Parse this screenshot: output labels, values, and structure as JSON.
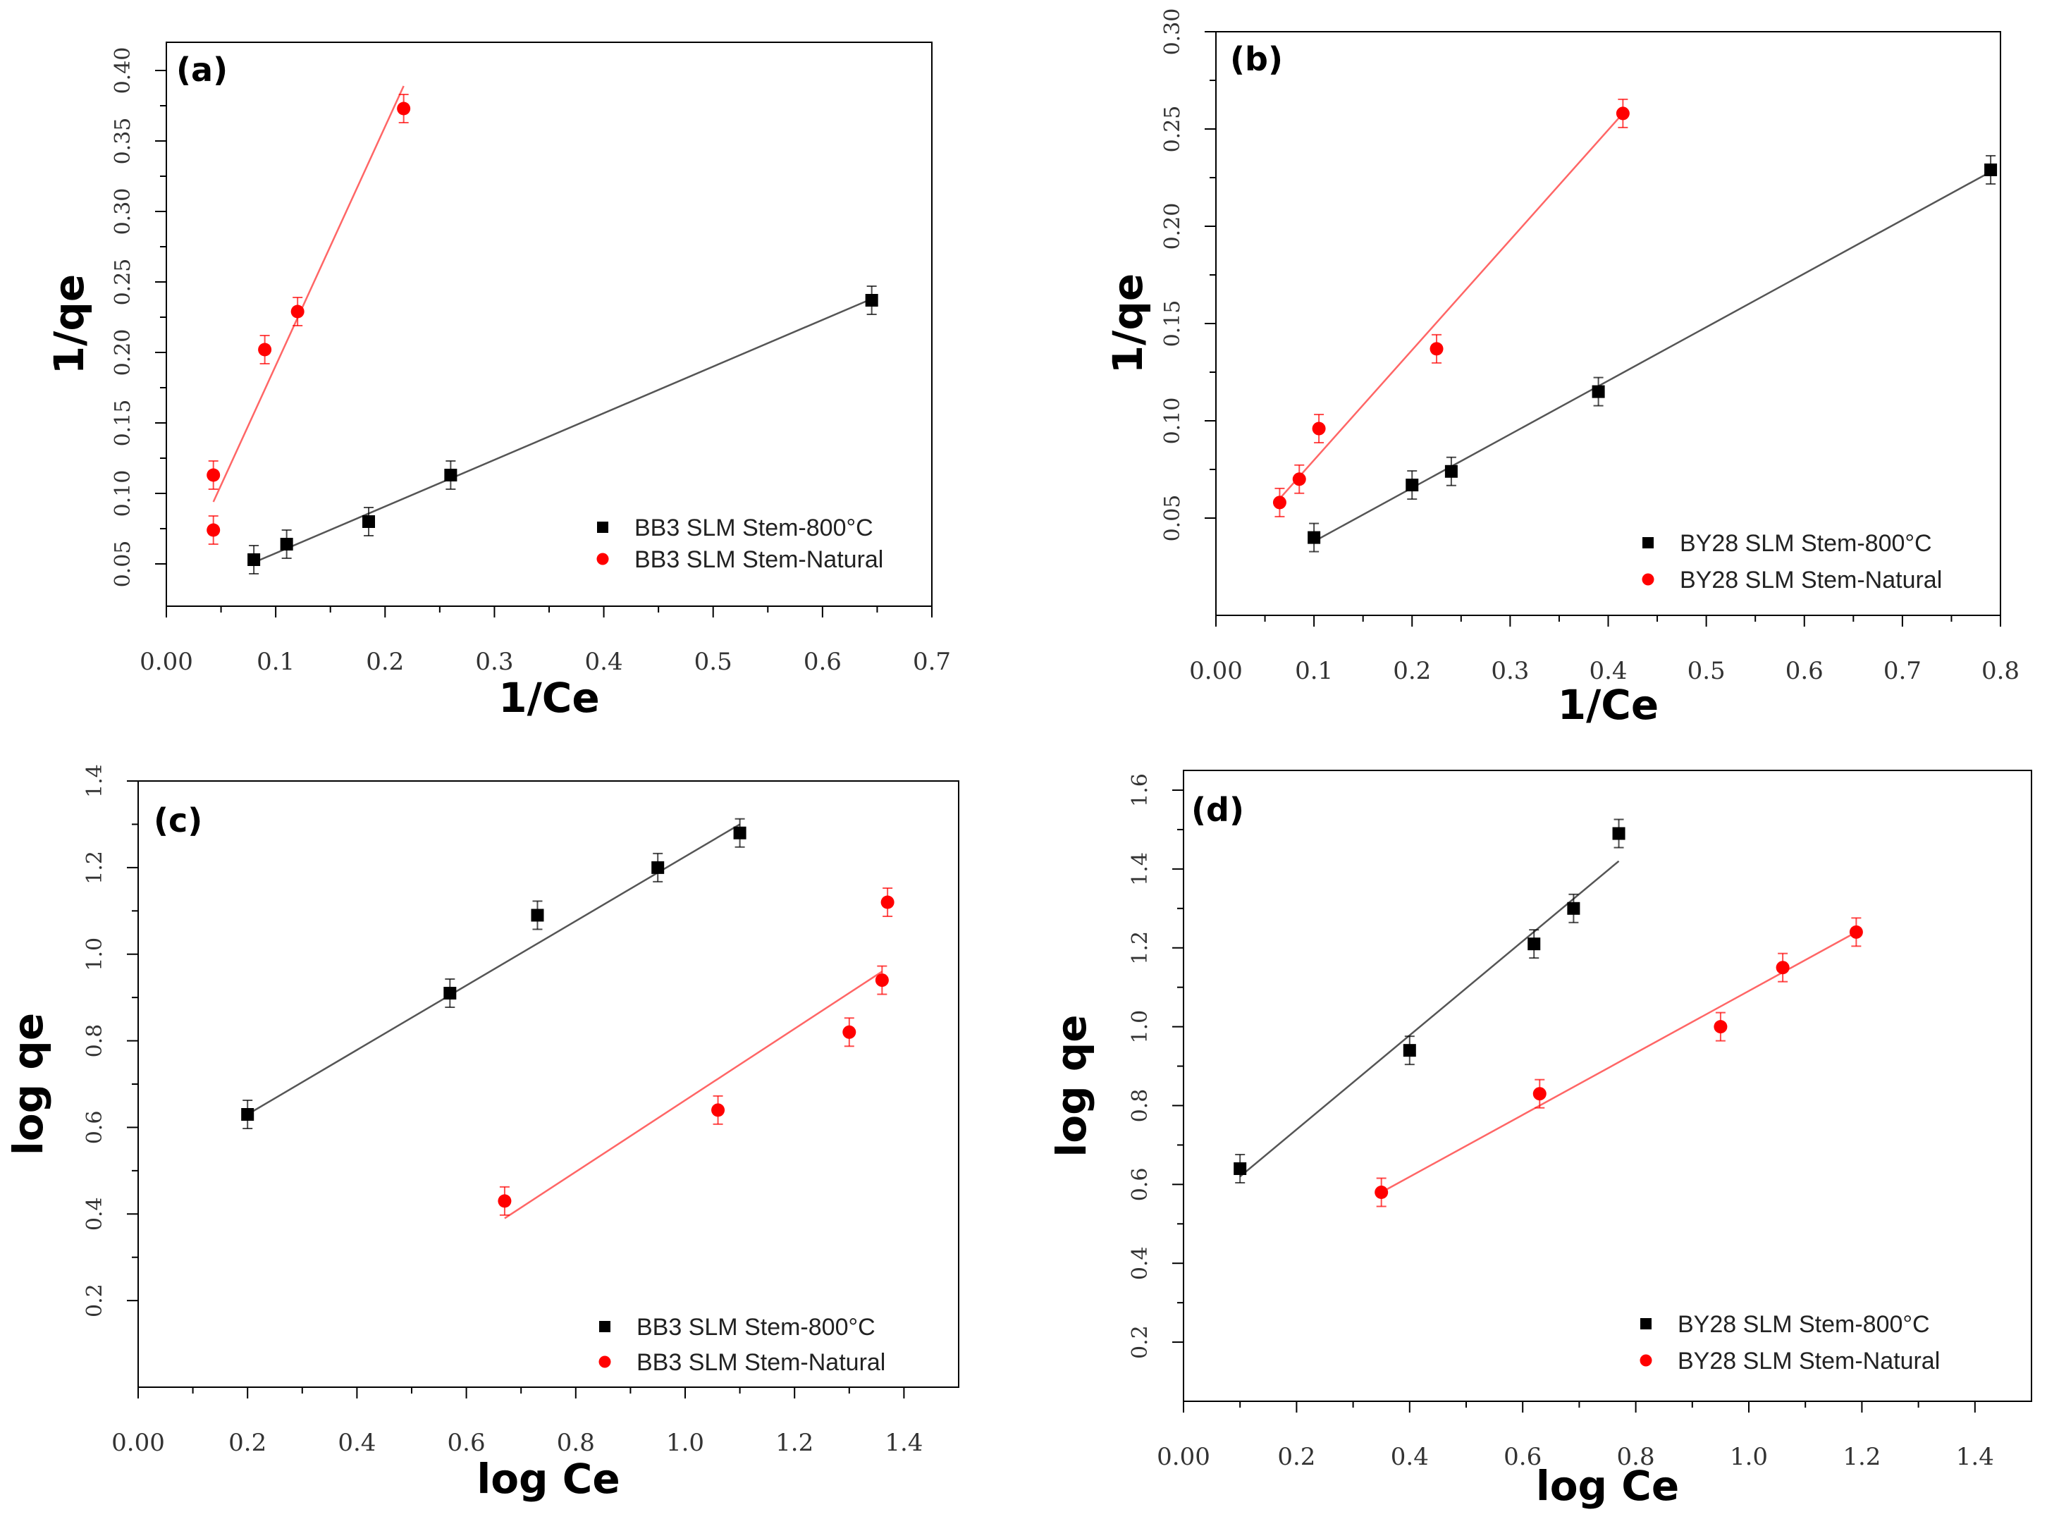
{
  "colors": {
    "series1": "#000000",
    "series2": "#ff0000",
    "fit1": "#555555",
    "fit2": "#ff6666"
  },
  "chart_data": [
    {
      "type": "scatter",
      "panel": "(a)",
      "xlabel": "1/Ce",
      "ylabel": "1/qe",
      "xlim": [
        0,
        0.7
      ],
      "ylim": [
        0.02,
        0.42
      ],
      "xticks": [
        "0.00",
        "0.1",
        "0.2",
        "0.3",
        "0.4",
        "0.5",
        "0.6",
        "0.7"
      ],
      "yticks": [
        "0.05",
        "0.10",
        "0.15",
        "0.20",
        "0.25",
        "0.30",
        "0.35",
        "0.40"
      ],
      "legend_position": "bottom-right",
      "series": [
        {
          "name": "BB3 SLM Stem-800°C",
          "marker": "square",
          "color": "#000000",
          "x": [
            0.08,
            0.11,
            0.185,
            0.26,
            0.645
          ],
          "y": [
            0.053,
            0.064,
            0.08,
            0.113,
            0.237
          ],
          "fit": [
            [
              0.08,
              0.051
            ],
            [
              0.645,
              0.238
            ]
          ]
        },
        {
          "name": "BB3 SLM Stem-Natural",
          "marker": "circle",
          "color": "#ff0000",
          "x": [
            0.043,
            0.043,
            0.09,
            0.12,
            0.217
          ],
          "y": [
            0.113,
            0.074,
            0.202,
            0.229,
            0.373
          ],
          "fit": [
            [
              0.043,
              0.094
            ],
            [
              0.217,
              0.389
            ]
          ]
        }
      ]
    },
    {
      "type": "scatter",
      "panel": "(b)",
      "xlabel": "1/Ce",
      "ylabel": "1/qe",
      "xlim": [
        0,
        0.8
      ],
      "ylim": [
        0,
        0.3
      ],
      "xticks": [
        "0.00",
        "0.1",
        "0.2",
        "0.3",
        "0.4",
        "0.5",
        "0.6",
        "0.7",
        "0.8"
      ],
      "yticks": [
        "0.05",
        "0.10",
        "0.15",
        "0.20",
        "0.25",
        "0.30"
      ],
      "legend_position": "bottom-right",
      "series": [
        {
          "name": "BY28 SLM Stem-800°C",
          "marker": "square",
          "color": "#000000",
          "x": [
            0.1,
            0.2,
            0.24,
            0.39,
            0.79
          ],
          "y": [
            0.04,
            0.067,
            0.074,
            0.115,
            0.229
          ],
          "fit": [
            [
              0.1,
              0.038
            ],
            [
              0.79,
              0.228
            ]
          ]
        },
        {
          "name": "BY28 SLM Stem-Natural",
          "marker": "circle",
          "color": "#ff0000",
          "x": [
            0.065,
            0.085,
            0.105,
            0.225,
            0.415
          ],
          "y": [
            0.058,
            0.07,
            0.096,
            0.137,
            0.258
          ],
          "fit": [
            [
              0.065,
              0.06
            ],
            [
              0.415,
              0.258
            ]
          ]
        }
      ]
    },
    {
      "type": "scatter",
      "panel": "(c)",
      "xlabel": "log Ce",
      "ylabel": "log qe",
      "xlim": [
        0,
        1.5
      ],
      "ylim": [
        0,
        1.4
      ],
      "xticks": [
        "0.00",
        "0.2",
        "0.4",
        "0.6",
        "0.8",
        "1.0",
        "1.2",
        "1.4"
      ],
      "yticks": [
        "0.2",
        "0.4",
        "0.6",
        "0.8",
        "1.0",
        "1.2",
        "1.4"
      ],
      "legend_position": "bottom-right",
      "series": [
        {
          "name": "BB3 SLM Stem-800°C",
          "marker": "square",
          "color": "#000000",
          "x": [
            0.2,
            0.57,
            0.73,
            0.95,
            1.1
          ],
          "y": [
            0.63,
            0.91,
            1.09,
            1.2,
            1.28
          ],
          "fit": [
            [
              0.2,
              0.63
            ],
            [
              1.1,
              1.3
            ]
          ]
        },
        {
          "name": "BB3 SLM Stem-Natural",
          "marker": "circle",
          "color": "#ff0000",
          "x": [
            0.67,
            1.06,
            1.3,
            1.36,
            1.37
          ],
          "y": [
            0.43,
            0.64,
            0.82,
            0.94,
            1.12
          ],
          "fit": [
            [
              0.67,
              0.39
            ],
            [
              1.36,
              0.96
            ]
          ]
        }
      ]
    },
    {
      "type": "scatter",
      "panel": "(d)",
      "xlabel": "log Ce",
      "ylabel": "log qe",
      "xlim": [
        0,
        1.5
      ],
      "ylim": [
        0.05,
        1.65
      ],
      "xticks": [
        "0.00",
        "0.2",
        "0.4",
        "0.6",
        "0.8",
        "1.0",
        "1.2",
        "1.4"
      ],
      "yticks": [
        "0.2",
        "0.4",
        "0.6",
        "0.8",
        "1.0",
        "1.2",
        "1.4",
        "1.6"
      ],
      "legend_position": "bottom-right",
      "series": [
        {
          "name": "BY28 SLM Stem-800°C",
          "marker": "square",
          "color": "#000000",
          "x": [
            0.1,
            0.4,
            0.62,
            0.69,
            0.77
          ],
          "y": [
            0.64,
            0.94,
            1.21,
            1.3,
            1.49
          ],
          "fit": [
            [
              0.1,
              0.62
            ],
            [
              0.77,
              1.42
            ]
          ]
        },
        {
          "name": "BY28 SLM Stem-Natural",
          "marker": "circle",
          "color": "#ff0000",
          "x": [
            0.35,
            0.63,
            0.95,
            1.06,
            1.19
          ],
          "y": [
            0.58,
            0.83,
            1.0,
            1.15,
            1.24
          ],
          "fit": [
            [
              0.35,
              0.58
            ],
            [
              1.19,
              1.24
            ]
          ]
        }
      ]
    }
  ]
}
